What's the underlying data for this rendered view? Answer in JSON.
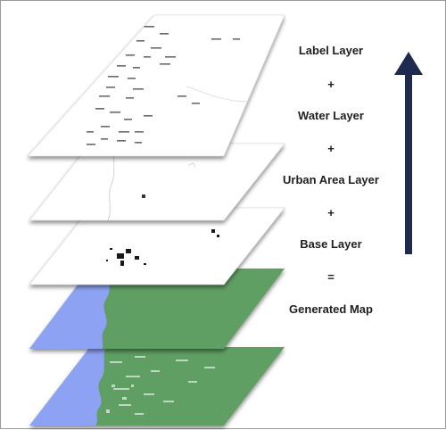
{
  "legend": {
    "label_layer": "Label Layer",
    "op1": "+",
    "water_layer": "Water Layer",
    "op2": "+",
    "urban_layer": "Urban Area Layer",
    "op3": "+",
    "base_layer": "Base Layer",
    "op4": "=",
    "generated": "Generated Map"
  },
  "colors": {
    "land_green": "#5f9f63",
    "water_blue": "#8ea2f3",
    "arrow_navy": "#1e2b4f",
    "urban_dark": "#1a1a1a",
    "sheet_white": "#ffffff"
  }
}
